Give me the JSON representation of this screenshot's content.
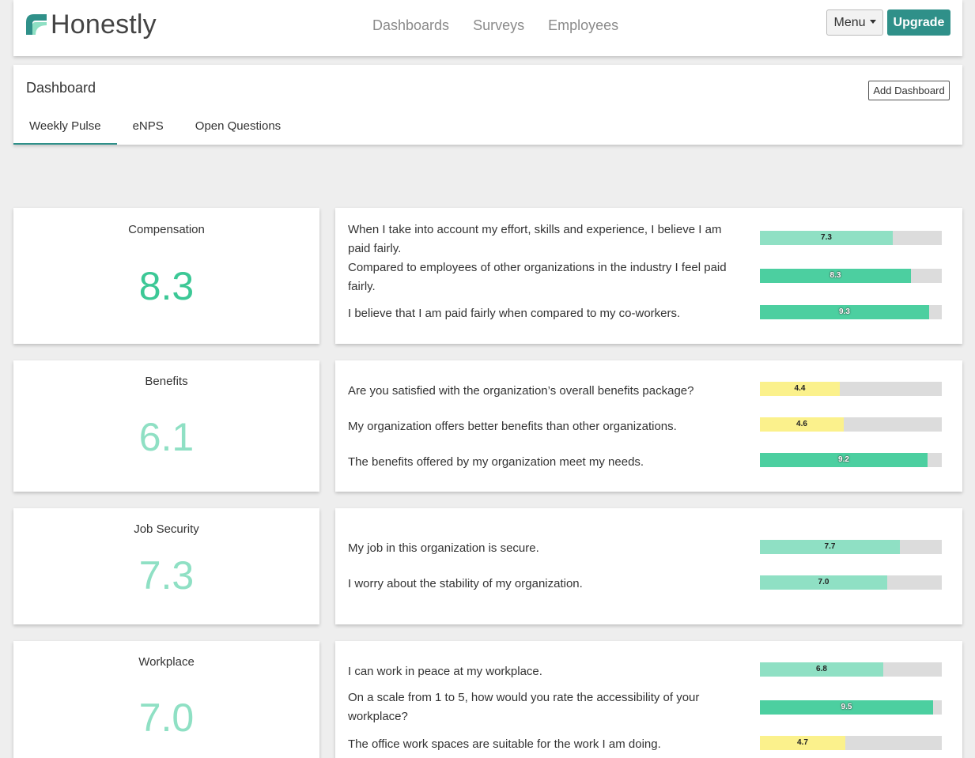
{
  "brand": {
    "name": "Honestly",
    "color": "#2f9089"
  },
  "nav": {
    "items": [
      "Dashboards",
      "Surveys",
      "Employees"
    ]
  },
  "menu": {
    "label": "Menu"
  },
  "upgrade": {
    "label": "Upgrade"
  },
  "dashboard": {
    "title": "Dashboard",
    "add_button": "Add Dashboard",
    "tabs": [
      "Weekly Pulse",
      "eNPS",
      "Open Questions"
    ],
    "active_tab": "Weekly Pulse"
  },
  "colors": {
    "high": "#4ccfa0",
    "mid": "#8fe0c4",
    "low": "#fbf18c",
    "track": "#dcdcdc"
  },
  "categories": [
    {
      "name": "Compensation",
      "score": "8.3",
      "level": "high",
      "questions": [
        {
          "text": "When I take into account my effort, skills and experience, I believe I am paid fairly.",
          "value": 7.3,
          "label": "7.3",
          "level": "mid"
        },
        {
          "text": "Compared to employees of other organizations in the industry I feel paid fairly.",
          "value": 8.3,
          "label": "8.3",
          "level": "high"
        },
        {
          "text": "I believe that I am paid fairly when compared to my co-workers.",
          "value": 9.3,
          "label": "9.3",
          "level": "high"
        }
      ]
    },
    {
      "name": "Benefits",
      "score": "6.1",
      "level": "mid",
      "questions": [
        {
          "text": "Are you satisfied with the organization’s overall benefits package?",
          "value": 4.4,
          "label": "4.4",
          "level": "low"
        },
        {
          "text": "My organization offers better benefits than other organizations.",
          "value": 4.6,
          "label": "4.6",
          "level": "low"
        },
        {
          "text": "The benefits offered by my organization meet my needs.",
          "value": 9.2,
          "label": "9.2",
          "level": "high"
        }
      ]
    },
    {
      "name": "Job Security",
      "score": "7.3",
      "level": "mid",
      "questions": [
        {
          "text": "My job in this organization is secure.",
          "value": 7.7,
          "label": "7.7",
          "level": "mid"
        },
        {
          "text": "I worry about the stability of my organization.",
          "value": 7.0,
          "label": "7.0",
          "level": "mid"
        }
      ]
    },
    {
      "name": "Workplace",
      "score": "7.0",
      "level": "mid",
      "questions": [
        {
          "text": "I can work in peace at my workplace.",
          "value": 6.8,
          "label": "6.8",
          "level": "mid"
        },
        {
          "text": "On a scale from 1 to 5, how would you rate the accessibility of your workplace?",
          "value": 9.5,
          "label": "9.5",
          "level": "high"
        },
        {
          "text": "The office work spaces are suitable for the work I am doing.",
          "value": 4.7,
          "label": "4.7",
          "level": "low"
        }
      ]
    }
  ]
}
